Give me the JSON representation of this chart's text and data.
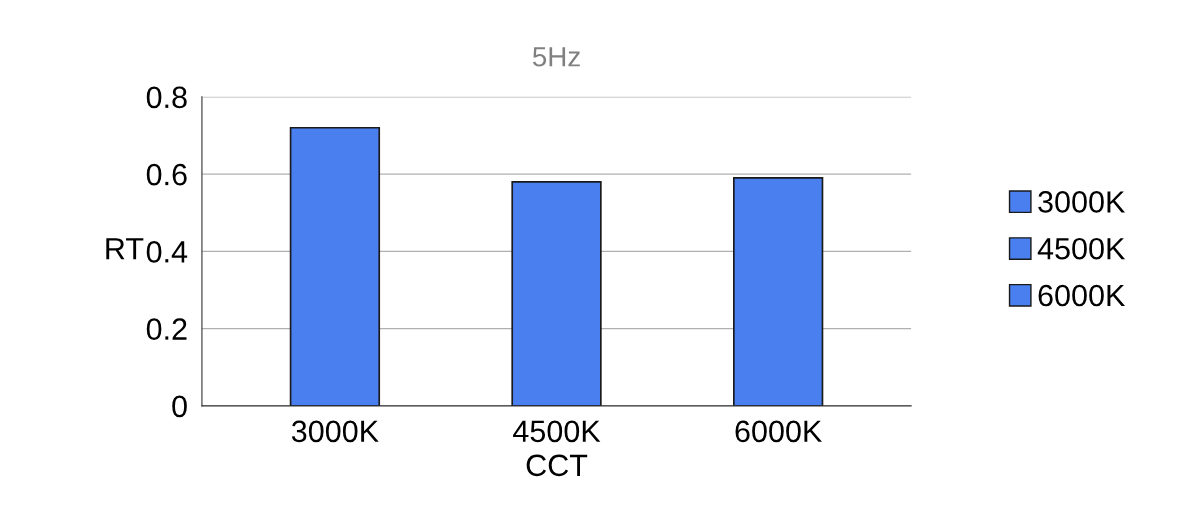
{
  "chart_data": {
    "type": "bar",
    "title": "5Hz",
    "xlabel": "CCT",
    "ylabel": "RT",
    "categories": [
      "3000K",
      "4500K",
      "6000K"
    ],
    "series": [
      {
        "name": "3000K",
        "color": "#4a7ff0",
        "values": [
          0.72,
          null,
          null
        ]
      },
      {
        "name": "4500K",
        "color": "#4a7ff0",
        "values": [
          null,
          0.58,
          null
        ]
      },
      {
        "name": "6000K",
        "color": "#4a7ff0",
        "values": [
          null,
          null,
          0.59
        ]
      }
    ],
    "ylim": [
      0,
      0.8
    ],
    "yticks": [
      {
        "value": 0,
        "label": "0"
      },
      0.2,
      0.4,
      0.6,
      0.8
    ],
    "grid": "y",
    "legend": "right"
  }
}
